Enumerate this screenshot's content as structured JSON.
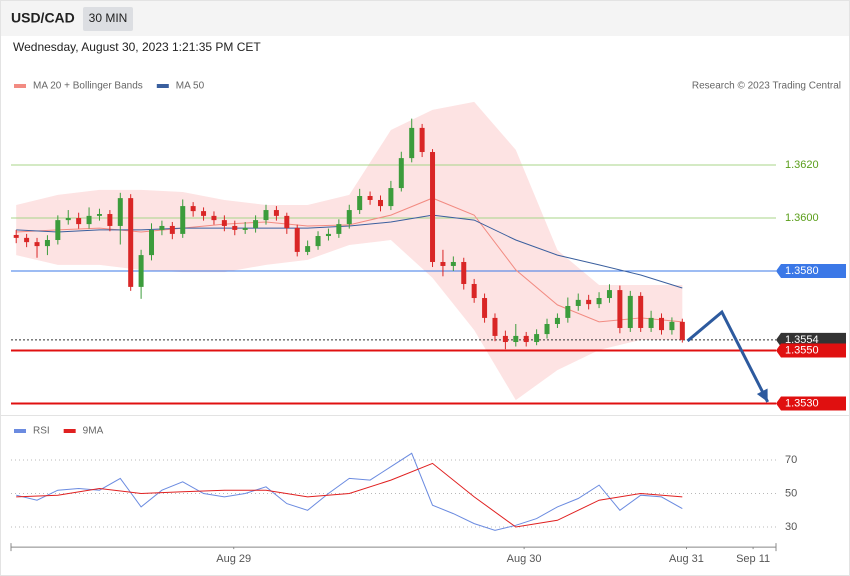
{
  "header": {
    "symbol": "USD/CAD",
    "interval": "30 MIN",
    "timestamp": "Wednesday, August 30, 2023 1:21:35 PM CET"
  },
  "chart_data": [
    {
      "type": "candlestick",
      "attribution": "Research © 2023 Trading Central",
      "up_color": "#3c9c3c",
      "down_color": "#d92626",
      "xlim": [
        -0.5,
        73
      ],
      "ylim": [
        1.3525,
        1.3665
      ],
      "open": [
        1.35936,
        1.35925,
        1.35909,
        1.35894,
        1.35917,
        1.35992,
        1.36,
        1.35977,
        1.36008,
        1.36015,
        1.3597,
        1.36075,
        1.3574,
        1.3586,
        1.35955,
        1.3597,
        1.3594,
        1.36045,
        1.36026,
        1.36008,
        1.35992,
        1.3597,
        1.35955,
        1.35962,
        1.35992,
        1.3603,
        1.36008,
        1.35962,
        1.35872,
        1.35894,
        1.35932,
        1.3594,
        1.35977,
        1.3603,
        1.36083,
        1.36068,
        1.36045,
        1.36113,
        1.36226,
        1.3634,
        1.36249,
        1.35834,
        1.35819,
        1.35834,
        1.35751,
        1.35698,
        1.35623,
        1.35555,
        1.35532,
        1.35555,
        1.35532,
        1.35562,
        1.356,
        1.35623,
        1.35668,
        1.35691,
        1.35675,
        1.35698,
        1.35728,
        1.35585,
        1.35706,
        1.35585,
        1.35623,
        1.35577,
        1.35608
      ],
      "high": [
        1.35955,
        1.3594,
        1.35925,
        1.35935,
        1.3601,
        1.3603,
        1.3602,
        1.3604,
        1.36035,
        1.3603,
        1.36095,
        1.3609,
        1.3588,
        1.3598,
        1.3599,
        1.35985,
        1.3607,
        1.3606,
        1.3604,
        1.36025,
        1.3601,
        1.3599,
        1.35985,
        1.3601,
        1.3605,
        1.36045,
        1.3602,
        1.35975,
        1.35915,
        1.3595,
        1.3596,
        1.35995,
        1.3605,
        1.3611,
        1.361,
        1.36085,
        1.3614,
        1.3625,
        1.36375,
        1.36355,
        1.3626,
        1.3588,
        1.35855,
        1.3585,
        1.3577,
        1.35715,
        1.3564,
        1.35575,
        1.356,
        1.3557,
        1.3558,
        1.3562,
        1.3564,
        1.357,
        1.35715,
        1.3571,
        1.3572,
        1.3575,
        1.35745,
        1.35725,
        1.3572,
        1.3565,
        1.3564,
        1.35625,
        1.3562
      ],
      "low": [
        1.35905,
        1.3589,
        1.3585,
        1.3586,
        1.359,
        1.35975,
        1.3596,
        1.3596,
        1.3599,
        1.3595,
        1.359,
        1.35725,
        1.35695,
        1.3584,
        1.35935,
        1.3592,
        1.35925,
        1.36005,
        1.3599,
        1.35975,
        1.3595,
        1.35935,
        1.3594,
        1.35945,
        1.35975,
        1.3599,
        1.3594,
        1.35855,
        1.3586,
        1.3588,
        1.35915,
        1.35925,
        1.3596,
        1.36015,
        1.3605,
        1.36025,
        1.3603,
        1.361,
        1.3621,
        1.3623,
        1.35815,
        1.3578,
        1.358,
        1.3573,
        1.3568,
        1.35605,
        1.35535,
        1.35505,
        1.35515,
        1.35515,
        1.3552,
        1.35545,
        1.35585,
        1.35605,
        1.3565,
        1.35655,
        1.3566,
        1.3568,
        1.35565,
        1.3557,
        1.3557,
        1.3557,
        1.3556,
        1.3556,
        1.3553
      ],
      "close": [
        1.35925,
        1.35909,
        1.35894,
        1.35917,
        1.35992,
        1.36,
        1.35977,
        1.36008,
        1.36015,
        1.3597,
        1.36075,
        1.3574,
        1.3586,
        1.35955,
        1.3597,
        1.3594,
        1.36045,
        1.36026,
        1.36008,
        1.35992,
        1.3597,
        1.35955,
        1.35962,
        1.35992,
        1.3603,
        1.36008,
        1.35962,
        1.35872,
        1.35894,
        1.35932,
        1.3594,
        1.35977,
        1.3603,
        1.36083,
        1.36068,
        1.36045,
        1.36113,
        1.36226,
        1.3634,
        1.36249,
        1.35834,
        1.35819,
        1.35834,
        1.35751,
        1.35698,
        1.35623,
        1.35555,
        1.35532,
        1.35555,
        1.35532,
        1.35562,
        1.356,
        1.35623,
        1.35668,
        1.35691,
        1.35675,
        1.35698,
        1.35728,
        1.35585,
        1.35706,
        1.35585,
        1.35623,
        1.35577,
        1.35608,
        1.3554
      ],
      "series": [
        {
          "name": "MA 20 + Bollinger Bands",
          "color": "#f28b82",
          "band_color": "#fde3e3",
          "x": [
            0,
            4,
            8,
            12,
            16,
            20,
            24,
            28,
            32,
            36,
            40,
            44,
            48,
            52,
            56,
            60,
            64
          ],
          "values": [
            1.35947,
            1.35955,
            1.35962,
            1.35947,
            1.35962,
            1.35977,
            1.35985,
            1.3597,
            1.35974,
            1.36011,
            1.36075,
            1.36011,
            1.35804,
            1.35672,
            1.35608,
            1.35623,
            1.35608
          ],
          "upper": [
            1.36049,
            1.36087,
            1.36106,
            1.36106,
            1.36098,
            1.36068,
            1.36049,
            1.36049,
            1.36087,
            1.36332,
            1.36408,
            1.36438,
            1.36257,
            1.35879,
            1.35747,
            1.35747,
            1.35747
          ],
          "lower": [
            1.3586,
            1.35823,
            1.35823,
            1.35804,
            1.35796,
            1.35796,
            1.35823,
            1.35842,
            1.35898,
            1.35917,
            1.35774,
            1.35577,
            1.35313,
            1.35426,
            1.35502,
            1.3554,
            1.3554
          ]
        },
        {
          "name": "MA 50",
          "color": "#3a5f9e",
          "x": [
            0,
            4,
            8,
            12,
            16,
            20,
            24,
            28,
            32,
            36,
            40,
            44,
            48,
            52,
            56,
            60,
            64
          ],
          "values": [
            1.35955,
            1.35947,
            1.35955,
            1.35955,
            1.35962,
            1.35962,
            1.35962,
            1.35962,
            1.3597,
            1.35985,
            1.36011,
            1.35992,
            1.35917,
            1.3586,
            1.35823,
            1.35785,
            1.35736
          ]
        }
      ],
      "levels": [
        {
          "value": 1.362,
          "label": "1.3620",
          "kind": "resistance",
          "color": "#a8d48a",
          "text_color": "#5a9e1a",
          "box": false
        },
        {
          "value": 1.36,
          "label": "1.3600",
          "kind": "resistance",
          "color": "#a8d48a",
          "text_color": "#5a9e1a",
          "box": false
        },
        {
          "value": 1.358,
          "label": "1.3580",
          "kind": "pivot",
          "color": "#3b78e7",
          "text_color": "#ffffff",
          "box": true
        },
        {
          "value": 1.3554,
          "label": "1.3554",
          "kind": "last",
          "color": "#333333",
          "text_color": "#ffffff",
          "box": true
        },
        {
          "value": 1.355,
          "label": "1.3550",
          "kind": "target",
          "color": "#e01010",
          "text_color": "#ffffff",
          "box": true
        },
        {
          "value": 1.353,
          "label": "1.3530",
          "kind": "target",
          "color": "#e01010",
          "text_color": "#ffffff",
          "box": true
        }
      ],
      "forecast": {
        "color": "#2d5a9e",
        "x": [
          64.5,
          67.8,
          72.2
        ],
        "values": [
          1.35536,
          1.35645,
          1.35306
        ]
      }
    },
    {
      "type": "line",
      "xlim": [
        -0.5,
        73
      ],
      "ylim": [
        18,
        90
      ],
      "yticks": [
        30,
        50,
        70
      ],
      "xticks": [
        {
          "value": 20.9,
          "label": "Aug 29"
        },
        {
          "value": 48.8,
          "label": "Aug 30"
        },
        {
          "value": 64.4,
          "label": "Aug 31"
        },
        {
          "value": 70.8,
          "label": "Sep 11"
        }
      ],
      "series": [
        {
          "name": "RSI",
          "color": "#6b8be0",
          "x": [
            0,
            2,
            4,
            6,
            8,
            10,
            12,
            14,
            16,
            18,
            20,
            22,
            24,
            26,
            28,
            30,
            32,
            34,
            36,
            38,
            40,
            42,
            44,
            46,
            48,
            50,
            52,
            54,
            56,
            58,
            60,
            62,
            64
          ],
          "values": [
            49,
            46,
            52,
            53,
            52,
            59,
            42,
            52,
            57,
            50,
            48,
            50,
            54,
            44,
            40,
            50,
            59,
            58,
            66,
            74,
            43,
            38,
            32,
            28,
            31,
            35,
            42,
            47,
            55,
            40,
            49,
            48,
            41
          ]
        },
        {
          "name": "9MA",
          "color": "#e02020",
          "x": [
            0,
            4,
            8,
            12,
            16,
            20,
            24,
            28,
            32,
            36,
            40,
            44,
            48,
            52,
            56,
            60,
            64
          ],
          "values": [
            48,
            49,
            53,
            50,
            51,
            52,
            52,
            48,
            50,
            58,
            68,
            48,
            30,
            34,
            46,
            50,
            48
          ]
        }
      ]
    }
  ]
}
